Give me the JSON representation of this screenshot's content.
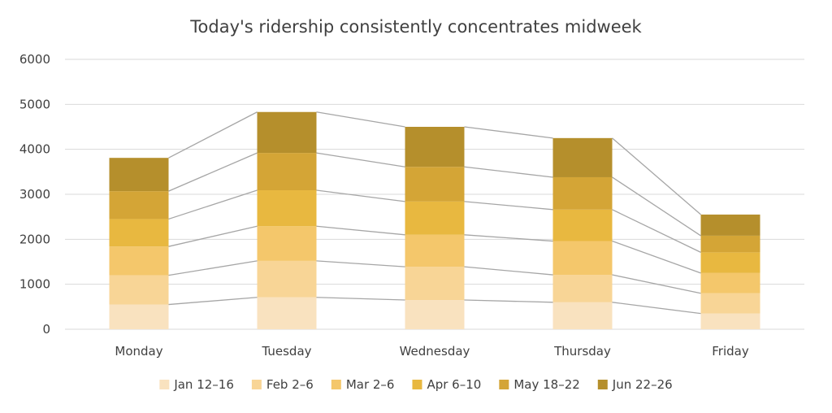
{
  "chart_data": {
    "type": "bar",
    "stacked": true,
    "title": "Today's ridership consistently concentrates midweek",
    "xlabel": "",
    "ylabel": "",
    "ylim": [
      0,
      6000
    ],
    "yticks": [
      0,
      1000,
      2000,
      3000,
      4000,
      5000,
      6000
    ],
    "grid": true,
    "series_lines": true,
    "legend_position": "bottom",
    "categories": [
      "Monday",
      "Tuesday",
      "Wednesday",
      "Thursday",
      "Friday"
    ],
    "series": [
      {
        "name": "Jan 12–16",
        "color": "#F9E2BF",
        "values": [
          550,
          710,
          650,
          600,
          350
        ]
      },
      {
        "name": "Feb 2–6",
        "color": "#F8D596",
        "values": [
          650,
          810,
          740,
          610,
          450
        ]
      },
      {
        "name": "Mar 2–6",
        "color": "#F4C76B",
        "values": [
          640,
          770,
          710,
          750,
          450
        ]
      },
      {
        "name": "Apr 6–10",
        "color": "#E8B840",
        "values": [
          610,
          800,
          740,
          700,
          460
        ]
      },
      {
        "name": "May 18–22",
        "color": "#D4A536",
        "values": [
          620,
          830,
          770,
          720,
          370
        ]
      },
      {
        "name": "Jun 22–26",
        "color": "#B58F2C",
        "values": [
          740,
          910,
          890,
          870,
          470
        ]
      }
    ],
    "connector_color": "#A6A6A6",
    "grid_color": "#D9D9D9"
  }
}
